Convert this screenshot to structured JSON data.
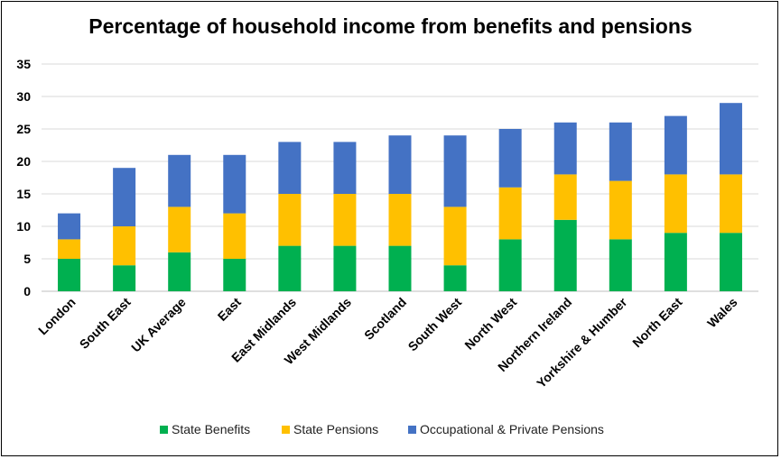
{
  "chart_data": {
    "type": "bar",
    "stacked": true,
    "title": "Percentage of household income from benefits and pensions",
    "xlabel": "",
    "ylabel": "",
    "ylim": [
      0,
      35
    ],
    "yticks": [
      0,
      5,
      10,
      15,
      20,
      25,
      30,
      35
    ],
    "grid": true,
    "legend_position": "bottom",
    "categories": [
      "London",
      "South East",
      "UK Average",
      "East",
      "East Midlands",
      "West Midlands",
      "Scotland",
      "South West",
      "North West",
      "Northern Ireland",
      "Yorkshire & Humber",
      "North East",
      "Wales"
    ],
    "series": [
      {
        "name": "State Benefits",
        "color": "#00b050",
        "values": [
          5,
          4,
          6,
          5,
          7,
          7,
          7,
          4,
          8,
          11,
          8,
          9,
          9
        ]
      },
      {
        "name": "State Pensions",
        "color": "#ffc000",
        "values": [
          3,
          6,
          7,
          7,
          8,
          8,
          8,
          9,
          8,
          7,
          9,
          9,
          9
        ]
      },
      {
        "name": "Occupational & Private Pensions",
        "color": "#4472c4",
        "values": [
          4,
          9,
          8,
          9,
          8,
          8,
          9,
          11,
          9,
          8,
          9,
          9,
          11
        ]
      }
    ]
  }
}
